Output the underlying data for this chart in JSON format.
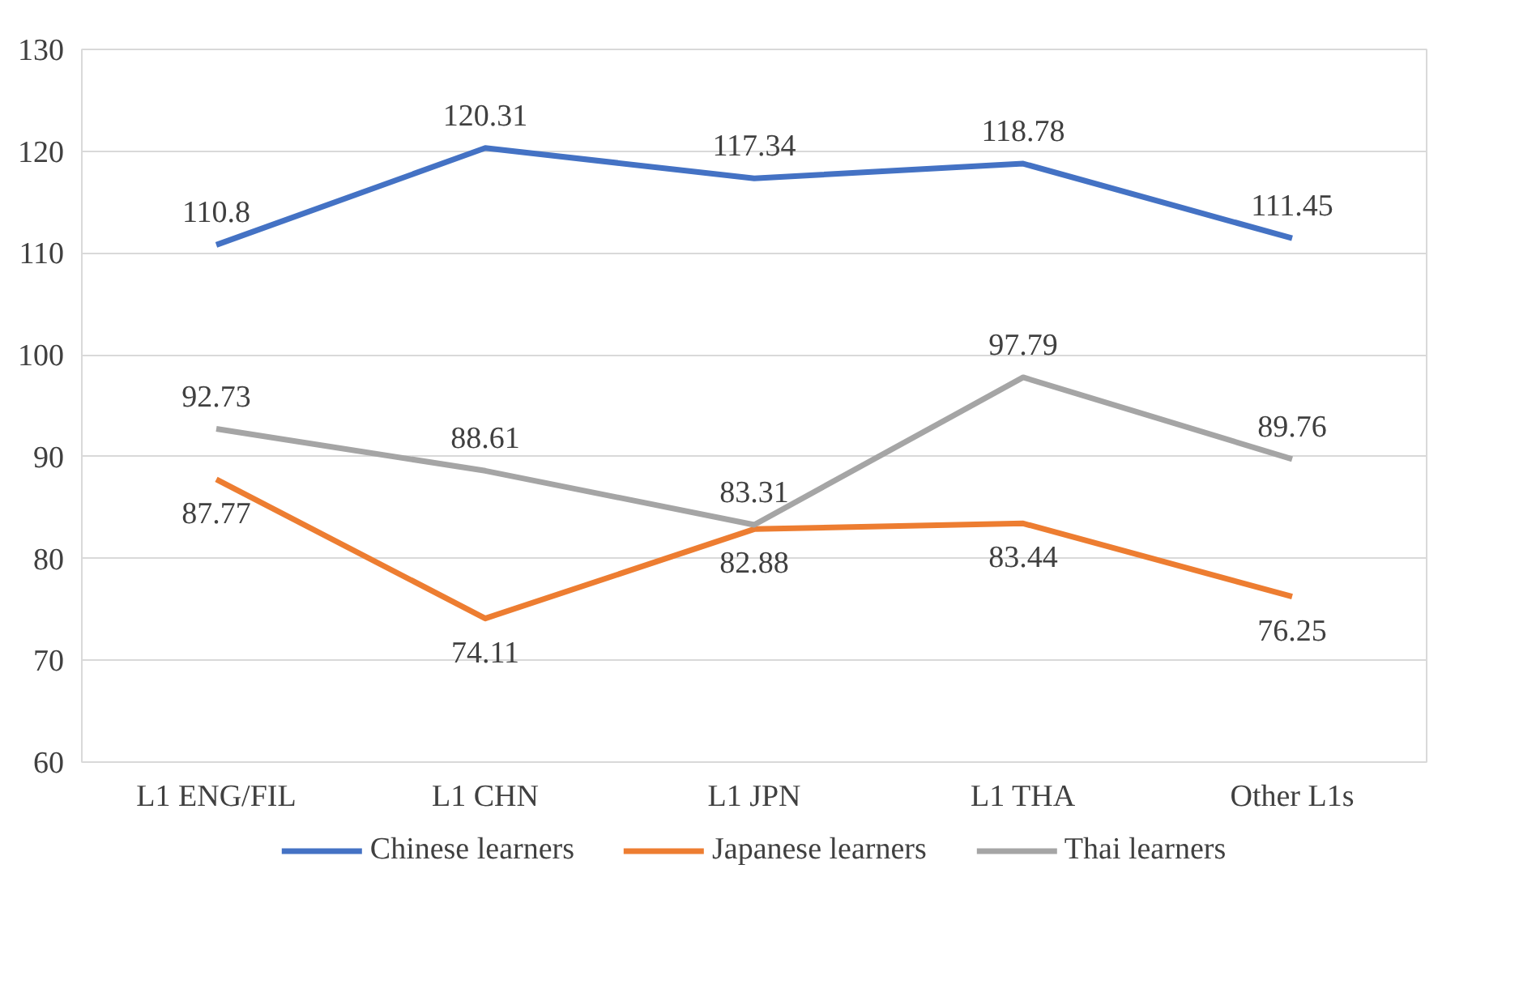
{
  "chart_data": {
    "type": "line",
    "categories": [
      "L1 ENG/FIL",
      "L1 CHN",
      "L1 JPN",
      "L1 THA",
      "Other L1s"
    ],
    "series": [
      {
        "name": "Chinese learners",
        "color": "#4472c4",
        "values": [
          110.8,
          120.31,
          117.34,
          118.78,
          111.45
        ]
      },
      {
        "name": "Japanese learners",
        "color": "#ed7d31",
        "values": [
          87.77,
          74.11,
          82.88,
          83.44,
          76.25
        ]
      },
      {
        "name": "Thai learners",
        "color": "#a5a5a5",
        "values": [
          92.73,
          88.61,
          83.31,
          97.79,
          89.76
        ]
      }
    ],
    "ylim": [
      60,
      130
    ],
    "yticks": [
      60,
      70,
      80,
      90,
      100,
      110,
      120,
      130
    ],
    "grid": "y",
    "legend": "bottom",
    "data_labels": true,
    "marker": "none",
    "line_style": "solid"
  }
}
